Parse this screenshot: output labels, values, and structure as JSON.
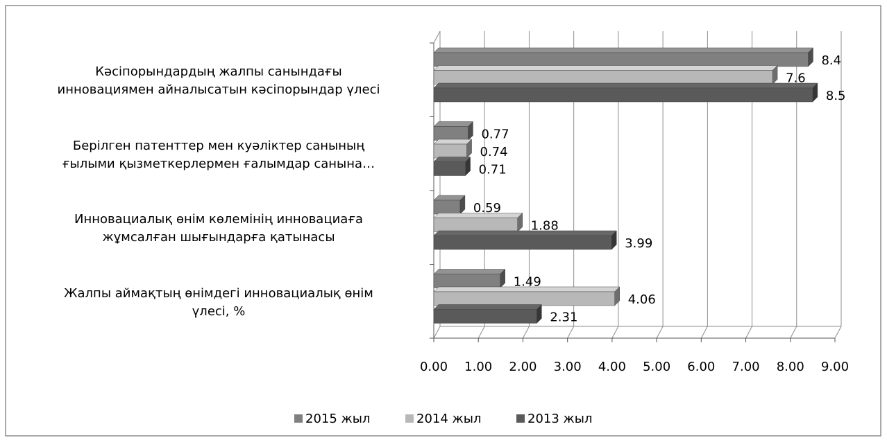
{
  "chart_data": {
    "type": "bar3d",
    "categories": [
      "Кәсіпорындардың жалпы санындағы\nинновациямен айналысатын кәсіпорындар үлесі",
      "Берілген патенттер мен куәліктер санының\nғылыми қызметкерлермен ғалымдар санына…",
      "Инновациалық өнім көлемінің инновациаға\nжұмсалған шығындарға қатынасы",
      "Жалпы аймақтың өнімдегі инновациалық өнім\nүлесі,  %"
    ],
    "series": [
      {
        "name": "2015 жыл",
        "color": "#808080",
        "values": [
          8.4,
          0.77,
          0.59,
          1.49
        ]
      },
      {
        "name": "2014 жыл",
        "color": "#b8b8b8",
        "values": [
          7.6,
          0.74,
          1.88,
          4.06
        ]
      },
      {
        "name": "2013 жыл",
        "color": "#5a5a5a",
        "values": [
          8.5,
          0.71,
          3.99,
          2.31
        ]
      }
    ],
    "xlim": [
      0,
      9
    ],
    "xticks": [
      {
        "value": 0,
        "label": "0.00"
      },
      {
        "value": 1,
        "label": "1.00"
      },
      {
        "value": 2,
        "label": "2.00"
      },
      {
        "value": 3,
        "label": "3.00"
      },
      {
        "value": 4,
        "label": "4.00"
      },
      {
        "value": 5,
        "label": "5.00"
      },
      {
        "value": 6,
        "label": "6.00"
      },
      {
        "value": 7,
        "label": "7.00"
      },
      {
        "value": 8,
        "label": "8.00"
      },
      {
        "value": 9,
        "label": "9.00"
      }
    ],
    "grid": true,
    "legend": "bottom"
  }
}
